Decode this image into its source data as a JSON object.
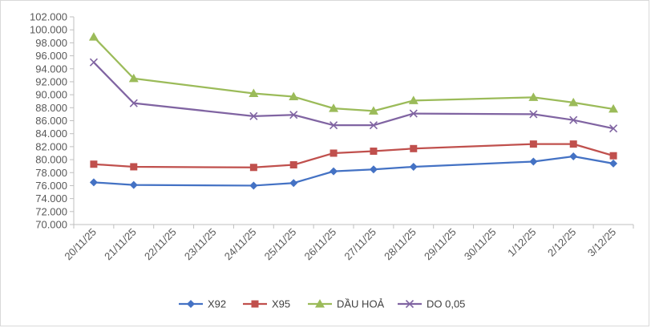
{
  "chart_data": {
    "type": "line",
    "title": "",
    "xlabel": "",
    "ylabel": "",
    "categories": [
      "20/11/25",
      "21/11/25",
      "22/11/25",
      "23/11/25",
      "24/11/25",
      "25/11/25",
      "26/11/25",
      "27/11/25",
      "28/11/25",
      "29/11/25",
      "30/11/25",
      "1/12/25",
      "2/12/25",
      "3/12/25"
    ],
    "ylim": [
      70000,
      102000
    ],
    "y_ticks": [
      "70.000",
      "72.000",
      "74.000",
      "76.000",
      "78.000",
      "80.000",
      "82.000",
      "84.000",
      "86.000",
      "88.000",
      "90.000",
      "92.000",
      "94.000",
      "96.000",
      "98.000",
      "100.000",
      "102.000"
    ],
    "grid": false,
    "legend_position": "bottom",
    "series": [
      {
        "name": "X92",
        "color": "#4472c4",
        "marker": "diamond",
        "values": [
          76500,
          76100,
          null,
          null,
          76000,
          76400,
          78200,
          78500,
          78900,
          null,
          null,
          79700,
          80500,
          79400
        ]
      },
      {
        "name": "X95",
        "color": "#c0504d",
        "marker": "square",
        "values": [
          79300,
          78900,
          null,
          null,
          78800,
          79200,
          81000,
          81300,
          81700,
          null,
          null,
          82400,
          82400,
          80600
        ]
      },
      {
        "name": "DẦU HOẢ",
        "color": "#9bbb59",
        "marker": "triangle",
        "values": [
          98900,
          92500,
          null,
          null,
          90200,
          89700,
          87900,
          87500,
          89100,
          null,
          null,
          89600,
          88800,
          87800
        ]
      },
      {
        "name": "DO 0,05",
        "color": "#8064a2",
        "marker": "x",
        "values": [
          95000,
          88700,
          null,
          null,
          86700,
          86900,
          85300,
          85300,
          87100,
          null,
          null,
          87000,
          86100,
          84800
        ]
      }
    ]
  }
}
